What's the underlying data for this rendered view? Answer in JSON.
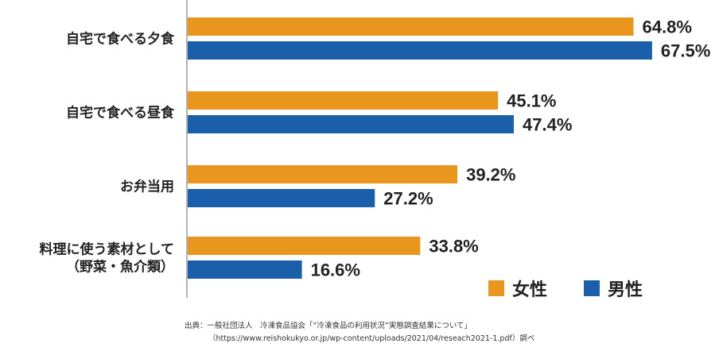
{
  "chart_data": {
    "type": "bar",
    "orientation": "horizontal",
    "categories": [
      [
        "自宅で食べる夕食"
      ],
      [
        "自宅で食べる昼食"
      ],
      [
        "お弁当用"
      ],
      [
        "料理に使う素材として",
        "（野菜・魚介類）"
      ]
    ],
    "series": [
      {
        "name": "女性",
        "color": "#E8961E",
        "values": [
          64.8,
          45.1,
          39.2,
          33.8
        ],
        "labels": [
          "64.8%",
          "45.1%",
          "39.2%",
          "33.8%"
        ]
      },
      {
        "name": "男性",
        "color": "#1B5FAA",
        "values": [
          67.5,
          47.4,
          27.2,
          16.6
        ],
        "labels": [
          "67.5%",
          "47.4%",
          "27.2%",
          "16.6%"
        ]
      }
    ],
    "legend_position": "bottom-right",
    "grid": false
  },
  "source": {
    "line1": "出典：一般社団法人　冷凍食品協会「“冷凍食品の利用状況”実態調査結果について」",
    "line2": "（https://www.reishokukyo.or.jp/wp-content/uploads/2021/04/reseach2021-1.pdf）調べ"
  }
}
